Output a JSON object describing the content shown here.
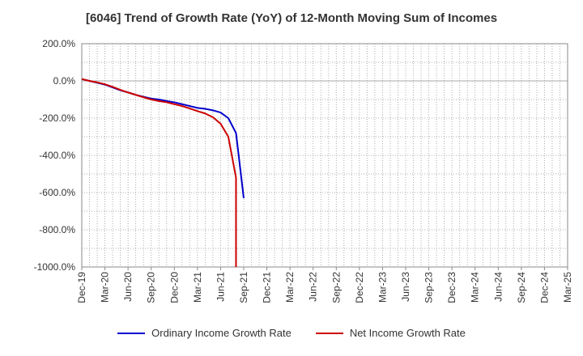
{
  "chart_data": {
    "type": "line",
    "title": "[6046]  Trend of Growth Rate (YoY) of 12-Month Moving Sum of Incomes",
    "xlabel": "",
    "ylabel": "",
    "ylim": [
      -1000,
      200
    ],
    "y_ticks": [
      "200.0%",
      "0.0%",
      "-200.0%",
      "-400.0%",
      "-600.0%",
      "-800.0%",
      "-1000.0%"
    ],
    "x_ticks": [
      "Dec-19",
      "Mar-20",
      "Jun-20",
      "Sep-20",
      "Dec-20",
      "Mar-21",
      "Jun-21",
      "Sep-21",
      "Dec-21",
      "Mar-22",
      "Jun-22",
      "Sep-22",
      "Dec-22",
      "Mar-23",
      "Jun-23",
      "Sep-23",
      "Dec-23",
      "Mar-24",
      "Jun-24",
      "Sep-24",
      "Dec-24",
      "Mar-25"
    ],
    "x_range": [
      "2019-12",
      "2025-03"
    ],
    "grid": true,
    "legend_position": "bottom",
    "series": [
      {
        "name": "Ordinary Income Growth Rate",
        "color": "#0000cc",
        "x": [
          "2019-12",
          "2020-01",
          "2020-02",
          "2020-03",
          "2020-04",
          "2020-05",
          "2020-06",
          "2020-07",
          "2020-08",
          "2020-09",
          "2020-10",
          "2020-11",
          "2020-12",
          "2021-01",
          "2021-02",
          "2021-03",
          "2021-04",
          "2021-05",
          "2021-06",
          "2021-07",
          "2021-08",
          "2021-09"
        ],
        "values": [
          10,
          0,
          -10,
          -20,
          -35,
          -50,
          -62,
          -75,
          -85,
          -95,
          -100,
          -108,
          -115,
          -125,
          -135,
          -145,
          -150,
          -158,
          -170,
          -200,
          -280,
          -630
        ]
      },
      {
        "name": "Net Income Growth Rate",
        "color": "#cc0000",
        "x": [
          "2019-12",
          "2020-01",
          "2020-02",
          "2020-03",
          "2020-04",
          "2020-05",
          "2020-06",
          "2020-07",
          "2020-08",
          "2020-09",
          "2020-10",
          "2020-11",
          "2020-12",
          "2021-01",
          "2021-02",
          "2021-03",
          "2021-04",
          "2021-05",
          "2021-06",
          "2021-07",
          "2021-08",
          "2021-08"
        ],
        "values": [
          10,
          0,
          -8,
          -18,
          -32,
          -48,
          -62,
          -75,
          -88,
          -100,
          -108,
          -115,
          -125,
          -135,
          -148,
          -162,
          -175,
          -195,
          -230,
          -300,
          -520,
          -1000
        ]
      }
    ]
  }
}
